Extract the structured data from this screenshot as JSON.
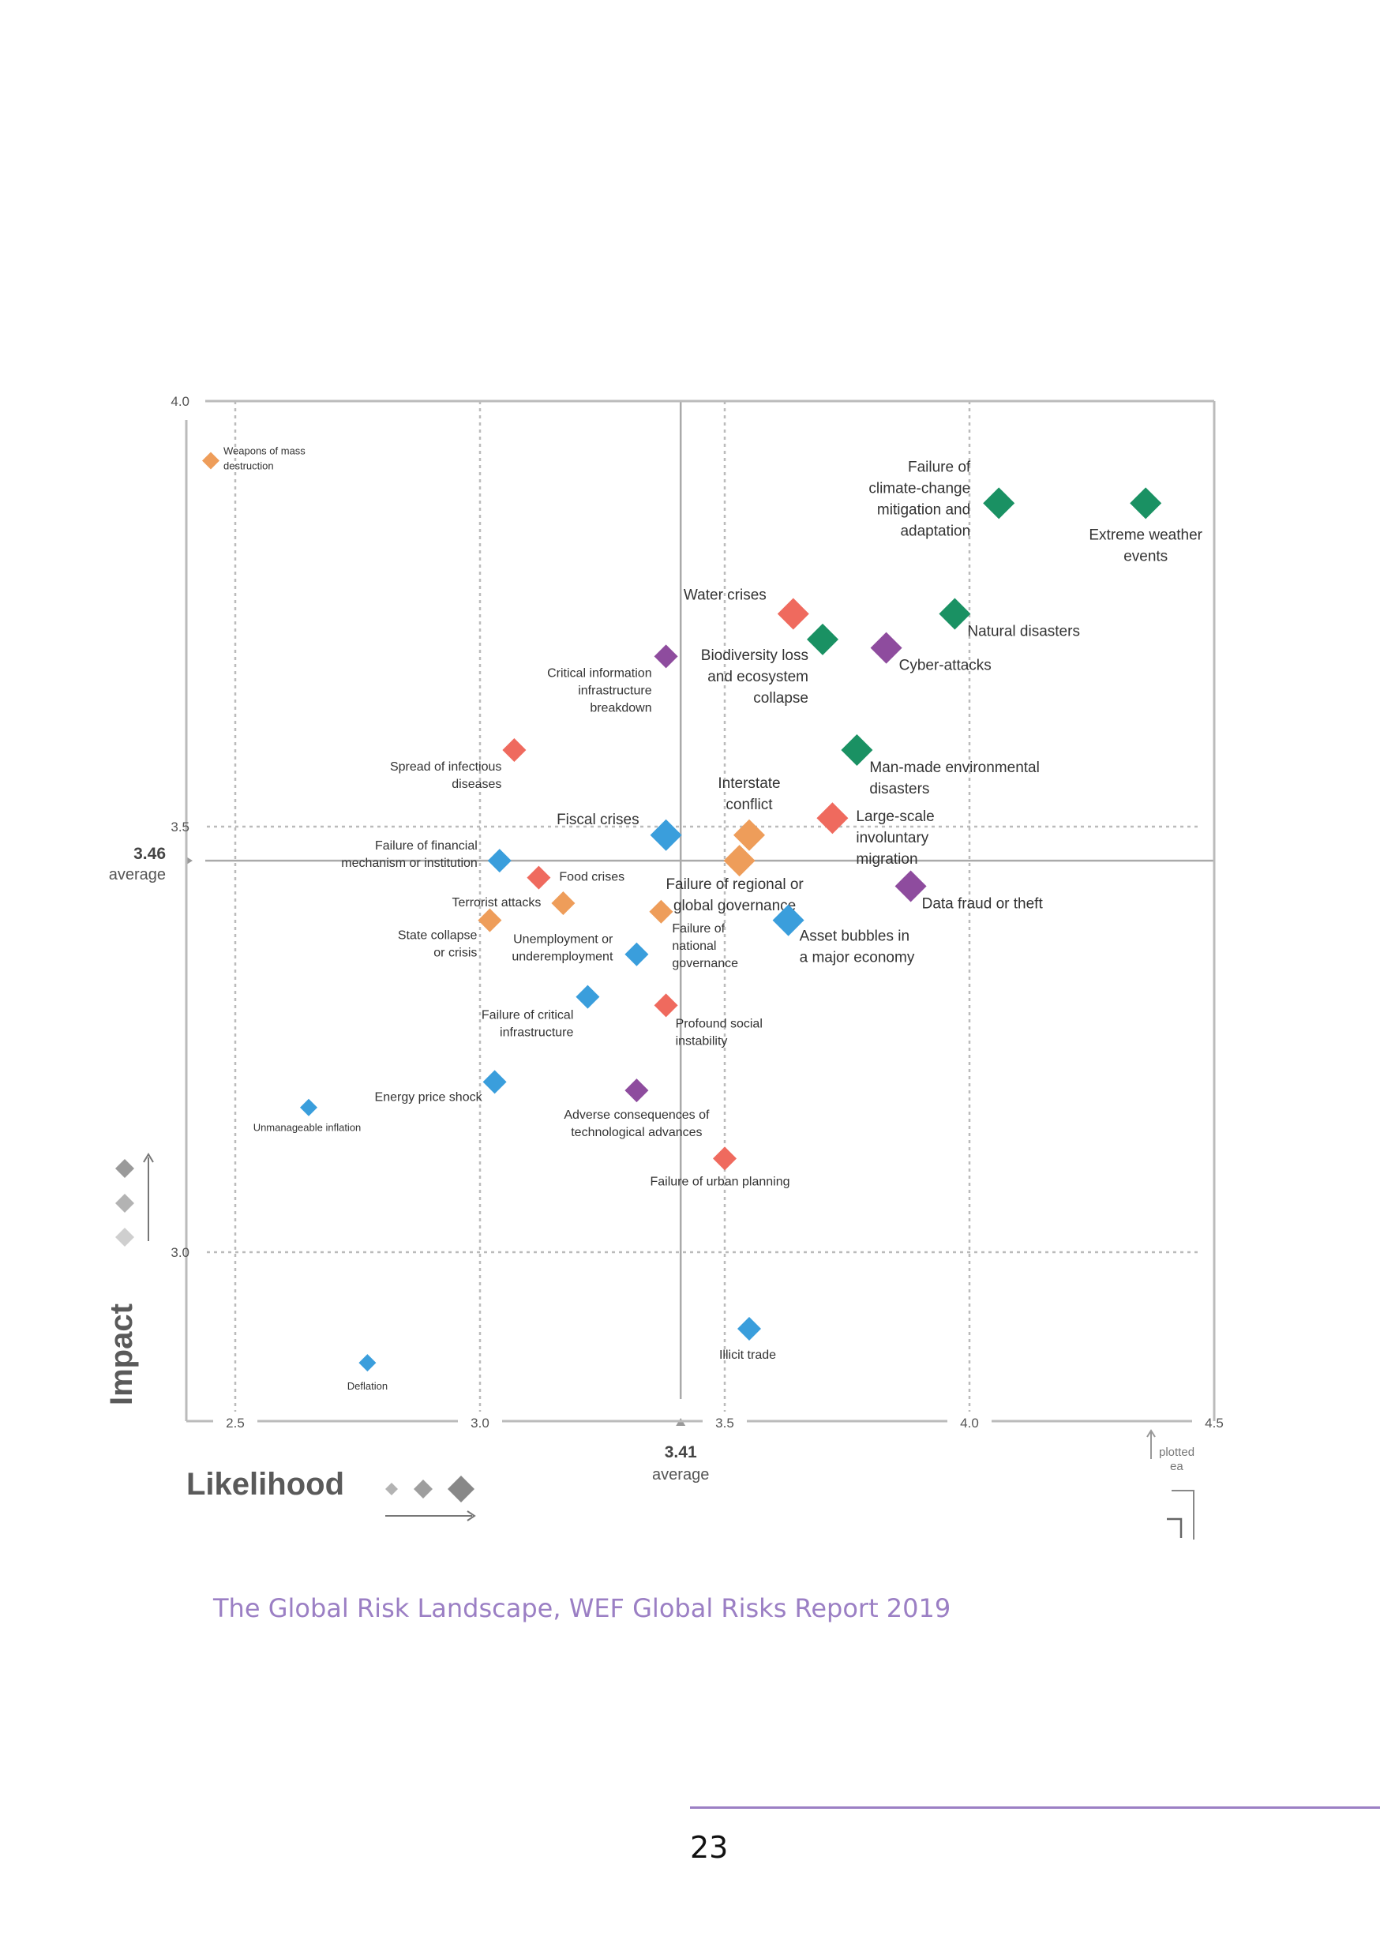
{
  "axis_titles": {
    "x": "Likelihood",
    "y": "Impact"
  },
  "caption": "The Global Risk Landscape, WEF Global Risks Report 2019",
  "page_number": "23",
  "plotted_note": [
    "plotted",
    "ea"
  ],
  "colors": {
    "economic": "#3a9edc",
    "environmental": "#1a9163",
    "geopolitical": "#ee9d5a",
    "societal": "#ef6a5e",
    "technological": "#8e4c9e",
    "axis": "#bbbbbb",
    "text": "#333333"
  },
  "chart_data": {
    "type": "scatter",
    "title": "",
    "xlabel": "Likelihood",
    "ylabel": "Impact",
    "xlim": [
      2.4,
      4.5
    ],
    "ylim": [
      2.8,
      4.0
    ],
    "x_ticks": [
      "2.5",
      "3.0",
      "3.5",
      "4.0",
      "4.5"
    ],
    "y_ticks": [
      "3.0",
      "3.5",
      "4.0"
    ],
    "x_average": {
      "value": 3.41,
      "label": [
        "3.41",
        "average"
      ]
    },
    "y_average": {
      "value": 3.46,
      "label": [
        "3.46",
        "average"
      ]
    },
    "grid": true,
    "points": [
      {
        "label": "Weapons of mass destruction",
        "lines": [
          "Weapons of mass",
          "destruction"
        ],
        "x": 2.45,
        "y": 3.93,
        "category": "geopolitical",
        "size": "small",
        "anchor": "start",
        "dx": 16,
        "dy": -8
      },
      {
        "label": "Failure of climate-change mitigation and adaptation",
        "lines": [
          "Failure of",
          "climate-change",
          "mitigation and",
          "adaptation"
        ],
        "x": 4.06,
        "y": 3.88,
        "category": "environmental",
        "size": "large",
        "anchor": "end",
        "dx": -36,
        "dy": -40
      },
      {
        "label": "Extreme weather events",
        "lines": [
          "Extreme weather",
          "events"
        ],
        "x": 4.36,
        "y": 3.88,
        "category": "environmental",
        "size": "large",
        "anchor": "middle",
        "dx": 0,
        "dy": 46
      },
      {
        "label": "Water crises",
        "lines": [
          "Water crises"
        ],
        "x": 3.64,
        "y": 3.75,
        "category": "societal",
        "size": "large",
        "anchor": "end",
        "dx": -34,
        "dy": -18
      },
      {
        "label": "Natural disasters",
        "lines": [
          "Natural disasters"
        ],
        "x": 3.97,
        "y": 3.75,
        "category": "environmental",
        "size": "large",
        "anchor": "start",
        "dx": 16,
        "dy": 28
      },
      {
        "label": "Biodiversity loss and ecosystem collapse",
        "lines": [
          "Biodiversity loss",
          "and ecosystem",
          "collapse"
        ],
        "x": 3.7,
        "y": 3.72,
        "category": "environmental",
        "size": "large",
        "anchor": "end",
        "dx": -18,
        "dy": 26
      },
      {
        "label": "Cyber-attacks",
        "lines": [
          "Cyber-attacks"
        ],
        "x": 3.83,
        "y": 3.71,
        "category": "technological",
        "size": "large",
        "anchor": "start",
        "dx": 16,
        "dy": 28
      },
      {
        "label": "Critical information infrastructure breakdown",
        "lines": [
          "Critical information",
          "infrastructure",
          "breakdown"
        ],
        "x": 3.38,
        "y": 3.7,
        "category": "technological",
        "size": "medium",
        "anchor": "end",
        "dx": -18,
        "dy": 26
      },
      {
        "label": "Spread of infectious diseases",
        "lines": [
          "Spread of infectious",
          "diseases"
        ],
        "x": 3.07,
        "y": 3.59,
        "category": "societal",
        "size": "medium",
        "anchor": "end",
        "dx": -16,
        "dy": 26
      },
      {
        "label": "Man-made environmental disasters",
        "lines": [
          "Man-made environmental",
          "disasters"
        ],
        "x": 3.77,
        "y": 3.59,
        "category": "environmental",
        "size": "large",
        "anchor": "start",
        "dx": 16,
        "dy": 28
      },
      {
        "label": "Interstate conflict",
        "lines": [
          "Interstate",
          "conflict"
        ],
        "x": 3.55,
        "y": 3.49,
        "category": "geopolitical",
        "size": "large",
        "anchor": "middle",
        "dx": 0,
        "dy": -60
      },
      {
        "label": "Large-scale involuntary migration",
        "lines": [
          "Large-scale",
          "involuntary",
          "migration"
        ],
        "x": 3.72,
        "y": 3.51,
        "category": "societal",
        "size": "large",
        "anchor": "start",
        "dx": 30,
        "dy": 4
      },
      {
        "label": "Fiscal crises",
        "lines": [
          "Fiscal crises"
        ],
        "x": 3.38,
        "y": 3.49,
        "category": "economic",
        "size": "large",
        "anchor": "end",
        "dx": -34,
        "dy": -14
      },
      {
        "label": "Failure of regional or global governance",
        "lines": [
          "Failure of regional or",
          "global governance"
        ],
        "x": 3.53,
        "y": 3.46,
        "category": "geopolitical",
        "size": "large",
        "anchor": "middle",
        "dx": -6,
        "dy": 36
      },
      {
        "label": "Failure of financial mechanism or institution",
        "lines": [
          "Failure of financial",
          "mechanism or institution"
        ],
        "x": 3.04,
        "y": 3.46,
        "category": "economic",
        "size": "medium",
        "anchor": "end",
        "dx": -28,
        "dy": -14
      },
      {
        "label": "Food crises",
        "lines": [
          "Food crises"
        ],
        "x": 3.12,
        "y": 3.44,
        "category": "societal",
        "size": "medium",
        "anchor": "start",
        "dx": 26,
        "dy": 4
      },
      {
        "label": "Data fraud or theft",
        "lines": [
          "Data fraud or theft"
        ],
        "x": 3.88,
        "y": 3.43,
        "category": "technological",
        "size": "large",
        "anchor": "start",
        "dx": 14,
        "dy": 28
      },
      {
        "label": "Terrorist attacks",
        "lines": [
          "Terrorist attacks"
        ],
        "x": 3.17,
        "y": 3.41,
        "category": "geopolitical",
        "size": "medium",
        "anchor": "end",
        "dx": -28,
        "dy": 4
      },
      {
        "label": "Asset bubbles in a major economy",
        "lines": [
          "Asset bubbles in",
          "a major economy"
        ],
        "x": 3.63,
        "y": 3.39,
        "category": "economic",
        "size": "large",
        "anchor": "start",
        "dx": 14,
        "dy": 26
      },
      {
        "label": "Failure of national governance",
        "lines": [
          "Failure of",
          "national",
          "governance"
        ],
        "x": 3.37,
        "y": 3.4,
        "category": "geopolitical",
        "size": "medium",
        "anchor": "start",
        "dx": 14,
        "dy": 26
      },
      {
        "label": "State collapse or crisis",
        "lines": [
          "State collapse",
          "or crisis"
        ],
        "x": 3.02,
        "y": 3.39,
        "category": "geopolitical",
        "size": "medium",
        "anchor": "end",
        "dx": -16,
        "dy": 24
      },
      {
        "label": "Unemployment or underemployment",
        "lines": [
          "Unemployment or",
          "underemployment"
        ],
        "x": 3.32,
        "y": 3.35,
        "category": "economic",
        "size": "medium",
        "anchor": "end",
        "dx": -30,
        "dy": -14
      },
      {
        "label": "Failure of critical infrastructure",
        "lines": [
          "Failure of critical",
          "infrastructure"
        ],
        "x": 3.22,
        "y": 3.3,
        "category": "economic",
        "size": "medium",
        "anchor": "end",
        "dx": -18,
        "dy": 28
      },
      {
        "label": "Profound social instability",
        "lines": [
          "Profound social",
          "instability"
        ],
        "x": 3.38,
        "y": 3.29,
        "category": "societal",
        "size": "medium",
        "anchor": "start",
        "dx": 12,
        "dy": 28
      },
      {
        "label": "Energy price shock",
        "lines": [
          "Energy price shock"
        ],
        "x": 3.03,
        "y": 3.2,
        "category": "economic",
        "size": "medium",
        "anchor": "end",
        "dx": -16,
        "dy": 24
      },
      {
        "label": "Adverse consequences of technological advances",
        "lines": [
          "Adverse consequences of",
          "technological advances"
        ],
        "x": 3.32,
        "y": 3.19,
        "category": "technological",
        "size": "medium",
        "anchor": "middle",
        "dx": 0,
        "dy": 36
      },
      {
        "label": "Unmanageable inflation",
        "lines": [
          "Unmanageable inflation"
        ],
        "x": 2.65,
        "y": 3.17,
        "category": "economic",
        "size": "small",
        "anchor": "middle",
        "dx": -2,
        "dy": 30
      },
      {
        "label": "Failure of urban planning",
        "lines": [
          "Failure of urban planning"
        ],
        "x": 3.5,
        "y": 3.11,
        "category": "societal",
        "size": "medium",
        "anchor": "middle",
        "dx": -6,
        "dy": 34
      },
      {
        "label": "Illicit trade",
        "lines": [
          "Illicit trade"
        ],
        "x": 3.55,
        "y": 2.91,
        "category": "economic",
        "size": "medium",
        "anchor": "middle",
        "dx": -2,
        "dy": 38
      },
      {
        "label": "Deflation",
        "lines": [
          "Deflation"
        ],
        "x": 2.77,
        "y": 2.87,
        "category": "economic",
        "size": "small",
        "anchor": "middle",
        "dx": 0,
        "dy": 34
      }
    ]
  }
}
